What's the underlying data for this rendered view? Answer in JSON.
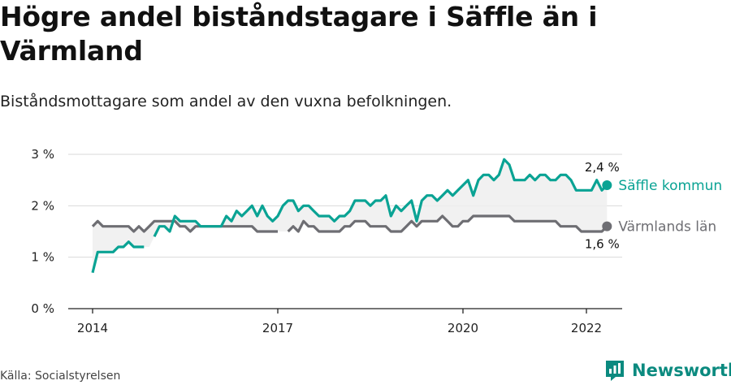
{
  "title": "Högre andel biståndstagare i Säffle än i Värmland",
  "subtitle": "Biståndsmottagare som andel av den vuxna befolkningen.",
  "source": "Källa: Socialstyrelsen",
  "brand": "Newsworthy",
  "colors": {
    "primary": "#0aa394",
    "secondary": "#6e6e73",
    "band": "#efefef",
    "grid": "#d9d9d9",
    "brand": "#0b8a7f"
  },
  "chart_data": {
    "type": "line",
    "title": "Högre andel biståndstagare i Säffle än i Värmland",
    "subtitle": "Biståndsmottagare som andel av den vuxna befolkningen.",
    "ylim": [
      0,
      3
    ],
    "grid": true,
    "y_ticks": [
      {
        "value": 0,
        "label": "0 %"
      },
      {
        "value": 1,
        "label": "1 %"
      },
      {
        "value": 2,
        "label": "2 %"
      },
      {
        "value": 3,
        "label": "3 %"
      }
    ],
    "x_ticks": [
      {
        "value": 2014,
        "label": "2014"
      },
      {
        "value": 2017,
        "label": "2017"
      },
      {
        "value": 2020,
        "label": "2020"
      },
      {
        "value": 2022,
        "label": "2022"
      }
    ],
    "x_start": 2014.0,
    "x_step_months": 1,
    "series": [
      {
        "name": "Säffle kommun",
        "color": "#0aa394",
        "end_label": "2,4 %",
        "values": [
          0.7,
          1.1,
          1.1,
          1.1,
          1.1,
          1.2,
          1.2,
          1.3,
          1.2,
          1.2,
          1.2,
          null,
          1.4,
          1.6,
          1.6,
          1.5,
          1.8,
          1.7,
          1.7,
          1.7,
          1.7,
          1.6,
          1.6,
          1.6,
          1.6,
          1.6,
          1.8,
          1.7,
          1.9,
          1.8,
          1.9,
          2.0,
          1.8,
          2.0,
          1.8,
          1.7,
          1.8,
          2.0,
          2.1,
          2.1,
          1.9,
          2.0,
          2.0,
          1.9,
          1.8,
          1.8,
          1.8,
          1.7,
          1.8,
          1.8,
          1.9,
          2.1,
          2.1,
          2.1,
          2.0,
          2.1,
          2.1,
          2.2,
          1.8,
          2.0,
          1.9,
          2.0,
          2.1,
          1.7,
          2.1,
          2.2,
          2.2,
          2.1,
          2.2,
          2.3,
          2.2,
          2.3,
          2.4,
          2.5,
          2.2,
          2.5,
          2.6,
          2.6,
          2.5,
          2.6,
          2.9,
          2.8,
          2.5,
          2.5,
          2.5,
          2.6,
          2.5,
          2.6,
          2.6,
          2.5,
          2.5,
          2.6,
          2.6,
          2.5,
          2.3,
          2.3,
          2.3,
          2.3,
          2.5,
          2.3,
          2.4
        ]
      },
      {
        "name": "Värmlands län",
        "color": "#6e6e73",
        "end_label": "1,6 %",
        "values": [
          1.6,
          1.7,
          1.6,
          1.6,
          1.6,
          1.6,
          1.6,
          1.6,
          1.5,
          1.6,
          1.5,
          1.6,
          1.7,
          1.7,
          1.7,
          1.7,
          1.7,
          1.6,
          1.6,
          1.5,
          1.6,
          1.6,
          1.6,
          1.6,
          1.6,
          1.6,
          1.6,
          1.6,
          1.6,
          1.6,
          1.6,
          1.6,
          1.5,
          1.5,
          1.5,
          1.5,
          1.5,
          null,
          1.5,
          1.6,
          1.5,
          1.7,
          1.6,
          1.6,
          1.5,
          1.5,
          1.5,
          1.5,
          1.5,
          1.6,
          1.6,
          1.7,
          1.7,
          1.7,
          1.6,
          1.6,
          1.6,
          1.6,
          1.5,
          1.5,
          1.5,
          1.6,
          1.7,
          1.6,
          1.7,
          1.7,
          1.7,
          1.7,
          1.8,
          1.7,
          1.6,
          1.6,
          1.7,
          1.7,
          1.8,
          1.8,
          1.8,
          1.8,
          1.8,
          1.8,
          1.8,
          1.8,
          1.7,
          1.7,
          1.7,
          1.7,
          1.7,
          1.7,
          1.7,
          1.7,
          1.7,
          1.6,
          1.6,
          1.6,
          1.6,
          1.5,
          1.5,
          1.5,
          1.5,
          1.5,
          1.6
        ]
      }
    ]
  }
}
